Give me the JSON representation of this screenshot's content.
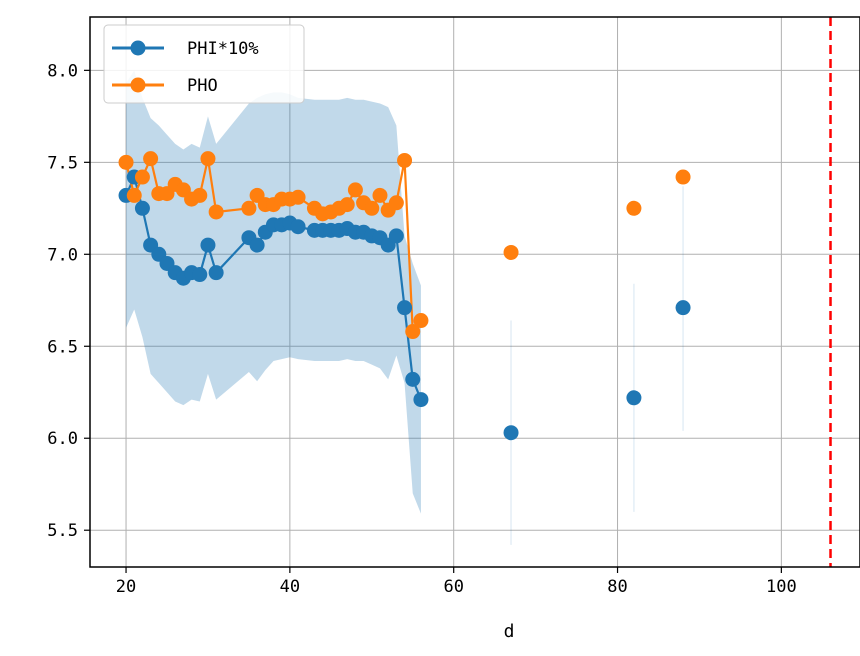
{
  "chart_data": {
    "type": "line",
    "title": "",
    "xlabel": "d",
    "ylabel": "",
    "xlim": [
      15.6,
      109.6
    ],
    "ylim": [
      5.3,
      8.29
    ],
    "xticks": [
      20,
      40,
      60,
      80,
      100
    ],
    "yticks": [
      5.5,
      6.0,
      6.5,
      7.0,
      7.5,
      8.0
    ],
    "ytick_labels": [
      "5.5",
      "6.0",
      "6.5",
      "7.0",
      "7.5",
      "8.0"
    ],
    "grid": true,
    "legend_position": "top-left",
    "vline": {
      "x": 106,
      "color": "#ff0000",
      "style": "dashed"
    },
    "series": [
      {
        "name": "PHI*10%",
        "color": "#1f77b4",
        "connected_segment_end_x": 56,
        "points": [
          [
            20,
            7.32
          ],
          [
            21,
            7.42
          ],
          [
            22,
            7.25
          ],
          [
            23,
            7.05
          ],
          [
            24,
            7.0
          ],
          [
            25,
            6.95
          ],
          [
            26,
            6.9
          ],
          [
            27,
            6.87
          ],
          [
            28,
            6.9
          ],
          [
            29,
            6.89
          ],
          [
            30,
            7.05
          ],
          [
            31,
            6.9
          ],
          [
            35,
            7.09
          ],
          [
            36,
            7.05
          ],
          [
            37,
            7.12
          ],
          [
            38,
            7.16
          ],
          [
            39,
            7.16
          ],
          [
            40,
            7.17
          ],
          [
            41,
            7.15
          ],
          [
            43,
            7.13
          ],
          [
            44,
            7.13
          ],
          [
            45,
            7.13
          ],
          [
            46,
            7.13
          ],
          [
            47,
            7.14
          ],
          [
            48,
            7.12
          ],
          [
            49,
            7.12
          ],
          [
            50,
            7.1
          ],
          [
            51,
            7.09
          ],
          [
            52,
            7.05
          ],
          [
            53,
            7.1
          ],
          [
            54,
            6.71
          ],
          [
            55,
            6.32
          ],
          [
            56,
            6.21
          ],
          [
            67,
            6.03
          ],
          [
            82,
            6.22
          ],
          [
            88,
            6.71
          ]
        ],
        "band_upper": [
          [
            20,
            7.93
          ],
          [
            21,
            8.0
          ],
          [
            22,
            7.85
          ],
          [
            23,
            7.74
          ],
          [
            24,
            7.7
          ],
          [
            25,
            7.65
          ],
          [
            26,
            7.6
          ],
          [
            27,
            7.57
          ],
          [
            28,
            7.6
          ],
          [
            29,
            7.58
          ],
          [
            30,
            7.75
          ],
          [
            31,
            7.6
          ],
          [
            35,
            7.82
          ],
          [
            36,
            7.85
          ],
          [
            37,
            7.87
          ],
          [
            38,
            7.88
          ],
          [
            39,
            7.88
          ],
          [
            40,
            7.87
          ],
          [
            41,
            7.85
          ],
          [
            43,
            7.84
          ],
          [
            44,
            7.84
          ],
          [
            45,
            7.84
          ],
          [
            46,
            7.84
          ],
          [
            47,
            7.85
          ],
          [
            48,
            7.84
          ],
          [
            49,
            7.84
          ],
          [
            50,
            7.83
          ],
          [
            51,
            7.82
          ],
          [
            52,
            7.8
          ],
          [
            53,
            7.7
          ],
          [
            54,
            7.1
          ],
          [
            55,
            6.95
          ],
          [
            56,
            6.83
          ]
        ],
        "band_lower": [
          [
            20,
            6.6
          ],
          [
            21,
            6.7
          ],
          [
            22,
            6.55
          ],
          [
            23,
            6.35
          ],
          [
            24,
            6.3
          ],
          [
            25,
            6.25
          ],
          [
            26,
            6.2
          ],
          [
            27,
            6.18
          ],
          [
            28,
            6.21
          ],
          [
            29,
            6.2
          ],
          [
            30,
            6.35
          ],
          [
            31,
            6.21
          ],
          [
            35,
            6.36
          ],
          [
            36,
            6.31
          ],
          [
            37,
            6.37
          ],
          [
            38,
            6.42
          ],
          [
            39,
            6.43
          ],
          [
            40,
            6.44
          ],
          [
            41,
            6.43
          ],
          [
            43,
            6.42
          ],
          [
            44,
            6.42
          ],
          [
            45,
            6.42
          ],
          [
            46,
            6.42
          ],
          [
            47,
            6.43
          ],
          [
            48,
            6.42
          ],
          [
            49,
            6.42
          ],
          [
            50,
            6.4
          ],
          [
            51,
            6.38
          ],
          [
            52,
            6.32
          ],
          [
            53,
            6.45
          ],
          [
            54,
            6.3
          ],
          [
            55,
            5.7
          ],
          [
            56,
            5.59
          ]
        ],
        "whiskers": [
          {
            "x": 67,
            "lo": 5.42,
            "hi": 6.64
          },
          {
            "x": 82,
            "lo": 5.6,
            "hi": 6.84
          },
          {
            "x": 88,
            "lo": 6.04,
            "hi": 7.37
          }
        ]
      },
      {
        "name": "PHO",
        "color": "#ff7f0e",
        "connected_segment_end_x": 56,
        "points": [
          [
            20,
            7.5
          ],
          [
            21,
            7.32
          ],
          [
            22,
            7.42
          ],
          [
            23,
            7.52
          ],
          [
            24,
            7.33
          ],
          [
            25,
            7.33
          ],
          [
            26,
            7.38
          ],
          [
            27,
            7.35
          ],
          [
            28,
            7.3
          ],
          [
            29,
            7.32
          ],
          [
            30,
            7.52
          ],
          [
            31,
            7.23
          ],
          [
            35,
            7.25
          ],
          [
            36,
            7.32
          ],
          [
            37,
            7.27
          ],
          [
            38,
            7.27
          ],
          [
            39,
            7.3
          ],
          [
            40,
            7.3
          ],
          [
            41,
            7.31
          ],
          [
            43,
            7.25
          ],
          [
            44,
            7.22
          ],
          [
            45,
            7.23
          ],
          [
            46,
            7.25
          ],
          [
            47,
            7.27
          ],
          [
            48,
            7.35
          ],
          [
            49,
            7.28
          ],
          [
            50,
            7.25
          ],
          [
            51,
            7.32
          ],
          [
            52,
            7.24
          ],
          [
            53,
            7.28
          ],
          [
            54,
            7.51
          ],
          [
            55,
            6.58
          ],
          [
            56,
            6.64
          ],
          [
            67,
            7.01
          ],
          [
            82,
            7.25
          ],
          [
            88,
            7.42
          ]
        ]
      }
    ]
  }
}
